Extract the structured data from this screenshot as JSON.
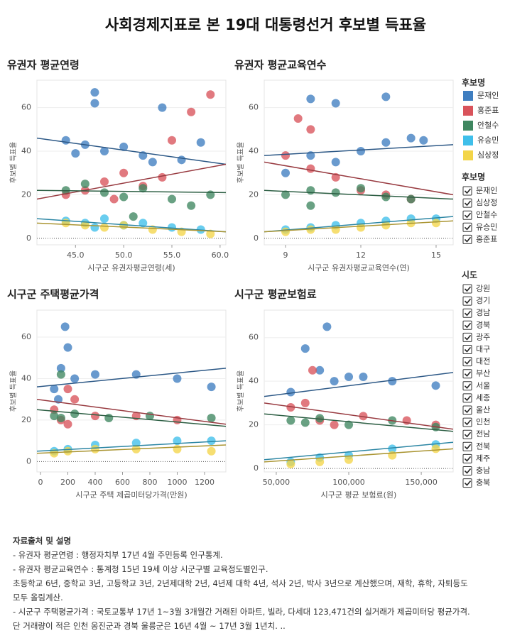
{
  "page_title": "사회경제지표로 본 19대 대통령선거 후보별 득표율",
  "chart_data": [
    {
      "type": "scatter",
      "title": "유권자 평균연령",
      "x_label": "시구군 유권자평균연령(세)",
      "y_label": "후보별 득표율",
      "xlim": [
        41,
        60.6
      ],
      "ylim": [
        -3,
        72.6
      ],
      "xticks": [
        {
          "value": 45,
          "label": "45.0"
        },
        {
          "value": 50,
          "label": "50.0"
        },
        {
          "value": 55,
          "label": "55.0"
        },
        {
          "value": 60,
          "label": "60.0"
        }
      ],
      "yticks": [
        0,
        20,
        40,
        60
      ],
      "series": [
        {
          "name": "문재인",
          "color": "#3f7ec0",
          "x": [
            44,
            46,
            47,
            48,
            50,
            52,
            54,
            56,
            58,
            47,
            45,
            53
          ],
          "values": [
            45,
            43,
            62,
            40,
            42,
            38,
            60,
            36,
            44,
            67,
            39,
            35
          ],
          "trend": {
            "x": [
              41,
              60.6
            ],
            "y": [
              46,
              34
            ]
          }
        },
        {
          "name": "홍준표",
          "color": "#d9535b",
          "x": [
            44,
            46,
            48,
            50,
            52,
            55,
            57,
            59,
            49,
            54
          ],
          "values": [
            20,
            22,
            26,
            30,
            24,
            45,
            58,
            66,
            18,
            28
          ],
          "trend": {
            "x": [
              41,
              60.6
            ],
            "y": [
              18,
              34
            ]
          }
        },
        {
          "name": "안철수",
          "color": "#3f8760",
          "x": [
            44,
            46,
            48,
            50,
            52,
            55,
            57,
            59,
            51
          ],
          "values": [
            22,
            25,
            21,
            19,
            23,
            18,
            15,
            20,
            10
          ],
          "trend": {
            "x": [
              41,
              60.6
            ],
            "y": [
              22,
              21
            ]
          }
        },
        {
          "name": "유승민",
          "color": "#3fbfea",
          "x": [
            44,
            46,
            48,
            50,
            52,
            55,
            58,
            47
          ],
          "values": [
            8,
            7,
            9,
            6,
            7,
            5,
            4,
            5
          ],
          "trend": {
            "x": [
              41,
              60.6
            ],
            "y": [
              9,
              3
            ]
          }
        },
        {
          "name": "심상정",
          "color": "#f3d549",
          "x": [
            44,
            46,
            48,
            50,
            53,
            56,
            59
          ],
          "values": [
            7,
            6,
            5,
            6,
            4,
            3,
            2
          ],
          "trend": {
            "x": [
              41,
              60.6
            ],
            "y": [
              7,
              3
            ]
          }
        }
      ]
    },
    {
      "type": "scatter",
      "title": "유권자 평균교육연수",
      "x_label": "시구군 유권자평균교육연수(연)",
      "y_label": "후보별 득표율",
      "xlim": [
        8.15,
        15.68
      ],
      "ylim": [
        -3,
        72.6
      ],
      "xticks": [
        9,
        12,
        15
      ],
      "yticks": [
        0,
        20,
        40,
        60
      ],
      "series": [
        {
          "name": "문재인",
          "color": "#3f7ec0",
          "x": [
            9,
            10,
            11,
            12,
            13,
            14,
            14.5,
            10,
            11,
            13
          ],
          "values": [
            30,
            38,
            35,
            40,
            44,
            46,
            45,
            64,
            62,
            65
          ],
          "trend": {
            "x": [
              8.15,
              15.68
            ],
            "y": [
              38,
              43
            ]
          }
        },
        {
          "name": "홍준표",
          "color": "#d9535b",
          "x": [
            9,
            10,
            11,
            12,
            13,
            14,
            10,
            9.5
          ],
          "values": [
            38,
            32,
            28,
            22,
            20,
            18,
            50,
            55
          ],
          "trend": {
            "x": [
              8.15,
              15.68
            ],
            "y": [
              35,
              20
            ]
          }
        },
        {
          "name": "안철수",
          "color": "#3f8760",
          "x": [
            9,
            10,
            11,
            12,
            13,
            14,
            10
          ],
          "values": [
            20,
            22,
            21,
            23,
            19,
            18,
            15
          ],
          "trend": {
            "x": [
              8.15,
              15.68
            ],
            "y": [
              22,
              18
            ]
          }
        },
        {
          "name": "유승민",
          "color": "#3fbfea",
          "x": [
            9,
            10,
            11,
            12,
            13,
            14,
            15
          ],
          "values": [
            4,
            5,
            6,
            7,
            8,
            9,
            9
          ],
          "trend": {
            "x": [
              8.15,
              15.68
            ],
            "y": [
              3,
              10
            ]
          }
        },
        {
          "name": "심상정",
          "color": "#f3d549",
          "x": [
            9,
            10,
            11,
            12,
            13,
            14,
            15
          ],
          "values": [
            3,
            4,
            4,
            5,
            6,
            7,
            7
          ],
          "trend": {
            "x": [
              8.15,
              15.68
            ],
            "y": [
              3,
              8
            ]
          }
        }
      ]
    },
    {
      "type": "scatter",
      "title": "시구군 주택평균가격",
      "x_label": "시구군 주택 제곱미터당가격(만원)",
      "y_label": "후보별 득표율",
      "xlim": [
        -26,
        1356
      ],
      "ylim": [
        -5,
        73
      ],
      "xticks": [
        0,
        200,
        400,
        600,
        800,
        1000,
        1200
      ],
      "yticks": [
        0,
        20,
        40,
        60
      ],
      "series": [
        {
          "name": "문재인",
          "color": "#3f7ec0",
          "x": [
            100,
            150,
            200,
            180,
            250,
            400,
            700,
            1000,
            1250,
            130
          ],
          "values": [
            35,
            45,
            55,
            65,
            40,
            42,
            42,
            40,
            36,
            30
          ],
          "trend": {
            "x": [
              -26,
              1356
            ],
            "y": [
              36,
              45
            ]
          }
        },
        {
          "name": "홍준표",
          "color": "#d9535b",
          "x": [
            100,
            150,
            200,
            250,
            400,
            700,
            1000,
            200
          ],
          "values": [
            25,
            20,
            18,
            30,
            22,
            22,
            20,
            35
          ],
          "trend": {
            "x": [
              -26,
              1356
            ],
            "y": [
              30,
              18
            ]
          }
        },
        {
          "name": "안철수",
          "color": "#3f8760",
          "x": [
            100,
            150,
            250,
            500,
            800,
            1250,
            150
          ],
          "values": [
            22,
            21,
            23,
            21,
            22,
            21,
            42
          ],
          "trend": {
            "x": [
              -26,
              1356
            ],
            "y": [
              25,
              17
            ]
          }
        },
        {
          "name": "유승민",
          "color": "#3fbfea",
          "x": [
            100,
            200,
            400,
            700,
            1000,
            1250
          ],
          "values": [
            5,
            6,
            8,
            9,
            10,
            10
          ],
          "trend": {
            "x": [
              -26,
              1356
            ],
            "y": [
              5,
              10
            ]
          }
        },
        {
          "name": "심상정",
          "color": "#f3d549",
          "x": [
            100,
            200,
            400,
            700,
            1000,
            1250
          ],
          "values": [
            4,
            5,
            6,
            6,
            6,
            5
          ],
          "trend": {
            "x": [
              -26,
              1356
            ],
            "y": [
              4,
              8
            ]
          }
        }
      ]
    },
    {
      "type": "scatter",
      "title": "시구군 평균보험료",
      "x_label": "시구군 평균 보험료(원)",
      "y_label": "후보별 득표율",
      "xlim": [
        41700,
        172000
      ],
      "ylim": [
        -1.6,
        72.6
      ],
      "xticks": [
        {
          "value": 50000,
          "label": "50,000"
        },
        {
          "value": 100000,
          "label": "100,000"
        },
        {
          "value": 150000,
          "label": "150,000"
        }
      ],
      "yticks": [
        0,
        20,
        40,
        60
      ],
      "series": [
        {
          "name": "문재인",
          "color": "#3f7ec0",
          "x": [
            60000,
            70000,
            80000,
            90000,
            100000,
            110000,
            130000,
            160000,
            85000
          ],
          "values": [
            35,
            55,
            45,
            40,
            42,
            42,
            40,
            38,
            65
          ],
          "trend": {
            "x": [
              41700,
              172000
            ],
            "y": [
              33,
              44
            ]
          }
        },
        {
          "name": "홍준표",
          "color": "#d9535b",
          "x": [
            60000,
            70000,
            80000,
            90000,
            110000,
            140000,
            160000,
            75000
          ],
          "values": [
            28,
            30,
            22,
            20,
            24,
            22,
            20,
            45
          ],
          "trend": {
            "x": [
              41700,
              172000
            ],
            "y": [
              30,
              18
            ]
          }
        },
        {
          "name": "안철수",
          "color": "#3f8760",
          "x": [
            60000,
            70000,
            80000,
            100000,
            130000,
            160000
          ],
          "values": [
            22,
            21,
            23,
            20,
            22,
            19
          ],
          "trend": {
            "x": [
              41700,
              172000
            ],
            "y": [
              25,
              17
            ]
          }
        },
        {
          "name": "유승민",
          "color": "#3fbfea",
          "x": [
            60000,
            80000,
            100000,
            130000,
            160000
          ],
          "values": [
            3,
            5,
            6,
            9,
            11
          ],
          "trend": {
            "x": [
              41700,
              172000
            ],
            "y": [
              4,
              12
            ]
          }
        },
        {
          "name": "심상정",
          "color": "#f3d549",
          "x": [
            60000,
            80000,
            100000,
            130000,
            160000
          ],
          "values": [
            2,
            3,
            4,
            6,
            9
          ],
          "trend": {
            "x": [
              41700,
              172000
            ],
            "y": [
              3,
              9
            ]
          }
        }
      ]
    }
  ],
  "legend_title": "후보명",
  "filters": [
    {
      "title": "후보명",
      "options": [
        "문재인",
        "심상정",
        "안철수",
        "유승민",
        "홍준표"
      ]
    },
    {
      "title": "시도",
      "options": [
        "강원",
        "경기",
        "경남",
        "경북",
        "광주",
        "대구",
        "대전",
        "부산",
        "서울",
        "세종",
        "울산",
        "인천",
        "전남",
        "전북",
        "제주",
        "충남",
        "충북"
      ]
    }
  ],
  "notes": {
    "title": "자료출처 및 설명",
    "lines": [
      "- 유권자 평균연령 : 행정자치부 17년 4월 주민등록 인구통계.",
      "- 유권자 평균교육연수 : 통계청 15년 19세 이상 시군구별 교육정도별인구.",
      "초등학교 6년, 중학교 3년, 고등학교 3년, 2년제대학 2년, 4년제 대학 4년, 석사 2년, 박사 3년으로 계산했으며, 재학, 휴학, 자퇴등도",
      "모두 올림계산.",
      "- 시군구 주택평균가격 : 국토교통부 17년 1~3월 3개월간 거래된 아파트, 빌라, 다세대 123,471건의 실거래가 제곱미터당 평균가격.",
      "단 거래량이 적은 인천 옹진군과 경북 울릉군은 16년 4월 ~ 17년 3월 1년치. .."
    ]
  }
}
